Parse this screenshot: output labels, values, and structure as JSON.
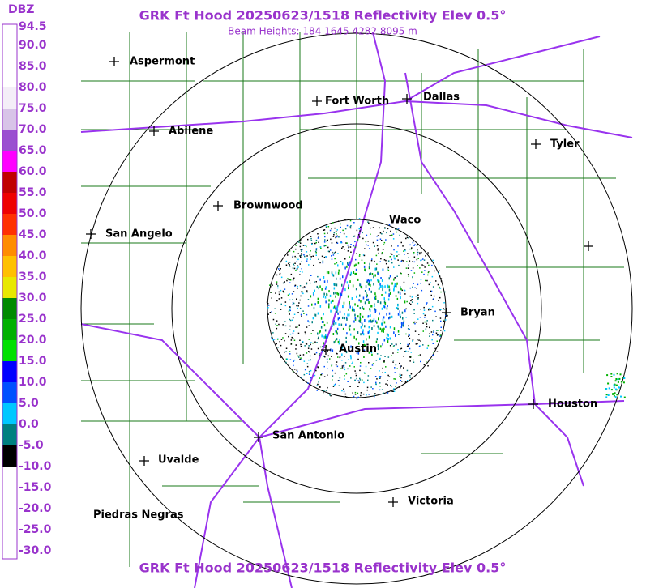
{
  "header": {
    "title": "GRK Ft Hood 20250623/1518 Reflectivity Elev 0.5°",
    "subtitle": "Beam Heights: 184 1645 4282 8095 m"
  },
  "footer": {
    "title": "GRK Ft Hood 20250623/1518 Reflectivity Elev 0.5°"
  },
  "colorbar": {
    "unit": "DBZ",
    "levels": [
      {
        "label": "94.5",
        "color": "#ffffff"
      },
      {
        "label": "90.0",
        "color": "#ffffff"
      },
      {
        "label": "85.0",
        "color": "#ffffff"
      },
      {
        "label": "80.0",
        "color": "#f4eef8"
      },
      {
        "label": "75.0",
        "color": "#d8c4e8"
      },
      {
        "label": "70.0",
        "color": "#9a4fd0"
      },
      {
        "label": "65.0",
        "color": "#ff00ff"
      },
      {
        "label": "60.0",
        "color": "#c00000"
      },
      {
        "label": "55.0",
        "color": "#ee0000"
      },
      {
        "label": "50.0",
        "color": "#ff3000"
      },
      {
        "label": "45.0",
        "color": "#ff8c00"
      },
      {
        "label": "40.0",
        "color": "#ffc000"
      },
      {
        "label": "35.0",
        "color": "#e8e800"
      },
      {
        "label": "30.0",
        "color": "#008a00"
      },
      {
        "label": "25.0",
        "color": "#00b000"
      },
      {
        "label": "20.0",
        "color": "#00e000"
      },
      {
        "label": "15.0",
        "color": "#0000ff"
      },
      {
        "label": "10.0",
        "color": "#0050ff"
      },
      {
        "label": "5.0",
        "color": "#00c8ff"
      },
      {
        "label": "0.0",
        "color": "#008080"
      },
      {
        "label": "-5.0",
        "color": "#000000"
      },
      {
        "label": "-10.0",
        "color": "#ffffff"
      },
      {
        "label": "-15.0",
        "color": "#ffffff"
      },
      {
        "label": "-20.0",
        "color": "#ffffff"
      },
      {
        "label": "-25.0",
        "color": "#ffffff"
      },
      {
        "label": "-30.0",
        "color": "#ffffff"
      }
    ]
  },
  "cities": [
    {
      "name": "Aspermont"
    },
    {
      "name": "Fort Worth"
    },
    {
      "name": "Dallas"
    },
    {
      "name": "Abilene"
    },
    {
      "name": "Tyler"
    },
    {
      "name": "Brownwood"
    },
    {
      "name": "Waco"
    },
    {
      "name": "San Angelo"
    },
    {
      "name": "Bryan"
    },
    {
      "name": "Austin"
    },
    {
      "name": "Houston"
    },
    {
      "name": "San Antonio"
    },
    {
      "name": "Uvalde"
    },
    {
      "name": "Victoria"
    },
    {
      "name": "Piedras Negras"
    }
  ]
}
